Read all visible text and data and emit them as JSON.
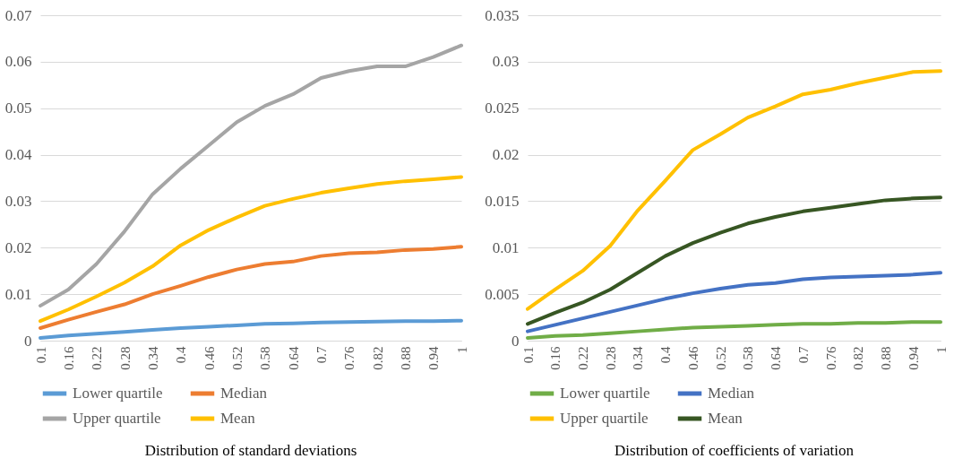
{
  "chart_data": [
    {
      "type": "line",
      "title": "Distribution of standard deviations",
      "x": [
        0.1,
        0.16,
        0.22,
        0.28,
        0.34,
        0.4,
        0.46,
        0.52,
        0.58,
        0.64,
        0.7,
        0.76,
        0.82,
        0.88,
        0.94,
        1
      ],
      "xlim": [
        0.1,
        1
      ],
      "xticks": [
        0.1,
        0.16,
        0.22,
        0.28,
        0.34,
        0.4,
        0.46,
        0.52,
        0.58,
        0.64,
        0.7,
        0.76,
        0.82,
        0.88,
        0.94,
        1
      ],
      "ylim": [
        0,
        0.07
      ],
      "yticks": [
        0,
        0.01,
        0.02,
        0.03,
        0.04,
        0.05,
        0.06,
        0.07
      ],
      "grid": "y",
      "legend": "bottom",
      "series": [
        {
          "name": "Lower quartile",
          "color": "#5b9bd5",
          "values": [
            0.0006,
            0.0011,
            0.0015,
            0.0019,
            0.0023,
            0.0027,
            0.003,
            0.0033,
            0.0036,
            0.0037,
            0.0039,
            0.004,
            0.0041,
            0.0042,
            0.0042,
            0.0043
          ]
        },
        {
          "name": "Median",
          "color": "#ed7d31",
          "values": [
            0.0027,
            0.0045,
            0.0062,
            0.0078,
            0.01,
            0.0118,
            0.0137,
            0.0153,
            0.0165,
            0.017,
            0.0182,
            0.0188,
            0.019,
            0.0195,
            0.0197,
            0.0202
          ]
        },
        {
          "name": "Upper quartile",
          "color": "#a5a5a5",
          "values": [
            0.0075,
            0.011,
            0.0165,
            0.0235,
            0.0315,
            0.037,
            0.042,
            0.047,
            0.0505,
            0.053,
            0.0565,
            0.058,
            0.059,
            0.059,
            0.061,
            0.0635
          ]
        },
        {
          "name": "Mean",
          "color": "#ffc000",
          "values": [
            0.0042,
            0.0067,
            0.0095,
            0.0125,
            0.016,
            0.0205,
            0.0238,
            0.0265,
            0.029,
            0.0305,
            0.0318,
            0.0328,
            0.0337,
            0.0343,
            0.0347,
            0.0352
          ]
        }
      ]
    },
    {
      "type": "line",
      "title": "Distribution of coefficients of variation",
      "x": [
        0.1,
        0.16,
        0.22,
        0.28,
        0.34,
        0.4,
        0.46,
        0.52,
        0.58,
        0.64,
        0.7,
        0.76,
        0.82,
        0.88,
        0.94,
        1
      ],
      "xlim": [
        0.1,
        1
      ],
      "xticks": [
        0.1,
        0.16,
        0.22,
        0.28,
        0.34,
        0.4,
        0.46,
        0.52,
        0.58,
        0.64,
        0.7,
        0.76,
        0.82,
        0.88,
        0.94,
        1
      ],
      "ylim": [
        0,
        0.035
      ],
      "yticks": [
        0,
        0.005,
        0.01,
        0.015,
        0.02,
        0.025,
        0.03,
        0.035
      ],
      "grid": "y",
      "legend": "bottom",
      "series": [
        {
          "name": "Lower quartile",
          "color": "#70ad47",
          "values": [
            0.0003,
            0.0005,
            0.0006,
            0.0008,
            0.001,
            0.0012,
            0.0014,
            0.0015,
            0.0016,
            0.0017,
            0.0018,
            0.0018,
            0.0019,
            0.0019,
            0.002,
            0.002
          ]
        },
        {
          "name": "Median",
          "color": "#4472c4",
          "values": [
            0.001,
            0.0017,
            0.0024,
            0.0031,
            0.0038,
            0.0045,
            0.0051,
            0.0056,
            0.006,
            0.0062,
            0.0066,
            0.0068,
            0.0069,
            0.007,
            0.0071,
            0.0073
          ]
        },
        {
          "name": "Upper quartile",
          "color": "#ffc000",
          "values": [
            0.0034,
            0.0055,
            0.0075,
            0.0102,
            0.014,
            0.0172,
            0.0205,
            0.0222,
            0.024,
            0.0252,
            0.0265,
            0.027,
            0.0277,
            0.0283,
            0.0289,
            0.029
          ]
        },
        {
          "name": "Mean",
          "color": "#375623",
          "values": [
            0.0018,
            0.003,
            0.0041,
            0.0055,
            0.0073,
            0.0091,
            0.0105,
            0.0116,
            0.0126,
            0.0133,
            0.0139,
            0.0143,
            0.0147,
            0.0151,
            0.0153,
            0.0154
          ]
        }
      ]
    }
  ]
}
